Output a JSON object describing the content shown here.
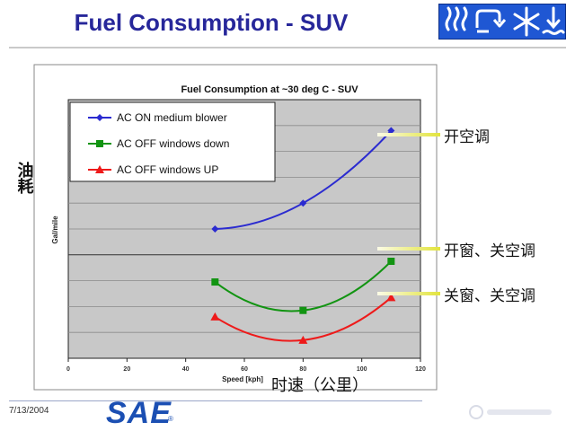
{
  "slide": {
    "title": "Fuel Consumption - SUV",
    "date": "7/13/2004",
    "logo_text": "SAE",
    "logo_mark": "®"
  },
  "annotations": {
    "ac_on": "开空调",
    "windows_down": "开窗、关空调",
    "windows_up": "关窗、关空调",
    "y_axis_cn": "油耗",
    "x_axis_cn": "时速（公里）"
  },
  "icons": [
    "heat-icon",
    "recirculation-icon",
    "snowflake-icon",
    "water-level-icon"
  ],
  "colors": {
    "title": "#27279a",
    "series_blue": "#2b2bd0",
    "series_green": "#129412",
    "series_red": "#ee1a1a",
    "plot_bg": "#c8c8c8",
    "callout": "#e6e84f"
  },
  "chart_data": {
    "type": "line",
    "title": "Fuel Consumption at ~30 deg C - SUV",
    "xlabel": "Speed [kph]",
    "ylabel": "Gal/mile",
    "xlim": [
      0,
      120
    ],
    "x_ticks": [
      0,
      20,
      40,
      60,
      80,
      100,
      120
    ],
    "y_ticks_labels": "none",
    "grid": "horizontal",
    "legend_position": "top-left",
    "series": [
      {
        "name": "AC ON medium blower",
        "marker": "diamond",
        "color": "#2b2bd0",
        "x": [
          50,
          80,
          110
        ],
        "y": [
          5.0,
          6.0,
          8.8
        ]
      },
      {
        "name": "AC OFF windows down",
        "marker": "square",
        "color": "#129412",
        "x": [
          50,
          80,
          110
        ],
        "y": [
          2.95,
          1.85,
          3.75
        ]
      },
      {
        "name": "AC OFF windows UP",
        "marker": "triangle",
        "color": "#ee1a1a",
        "x": [
          50,
          80,
          110
        ],
        "y": [
          1.6,
          0.7,
          2.35
        ]
      }
    ]
  }
}
